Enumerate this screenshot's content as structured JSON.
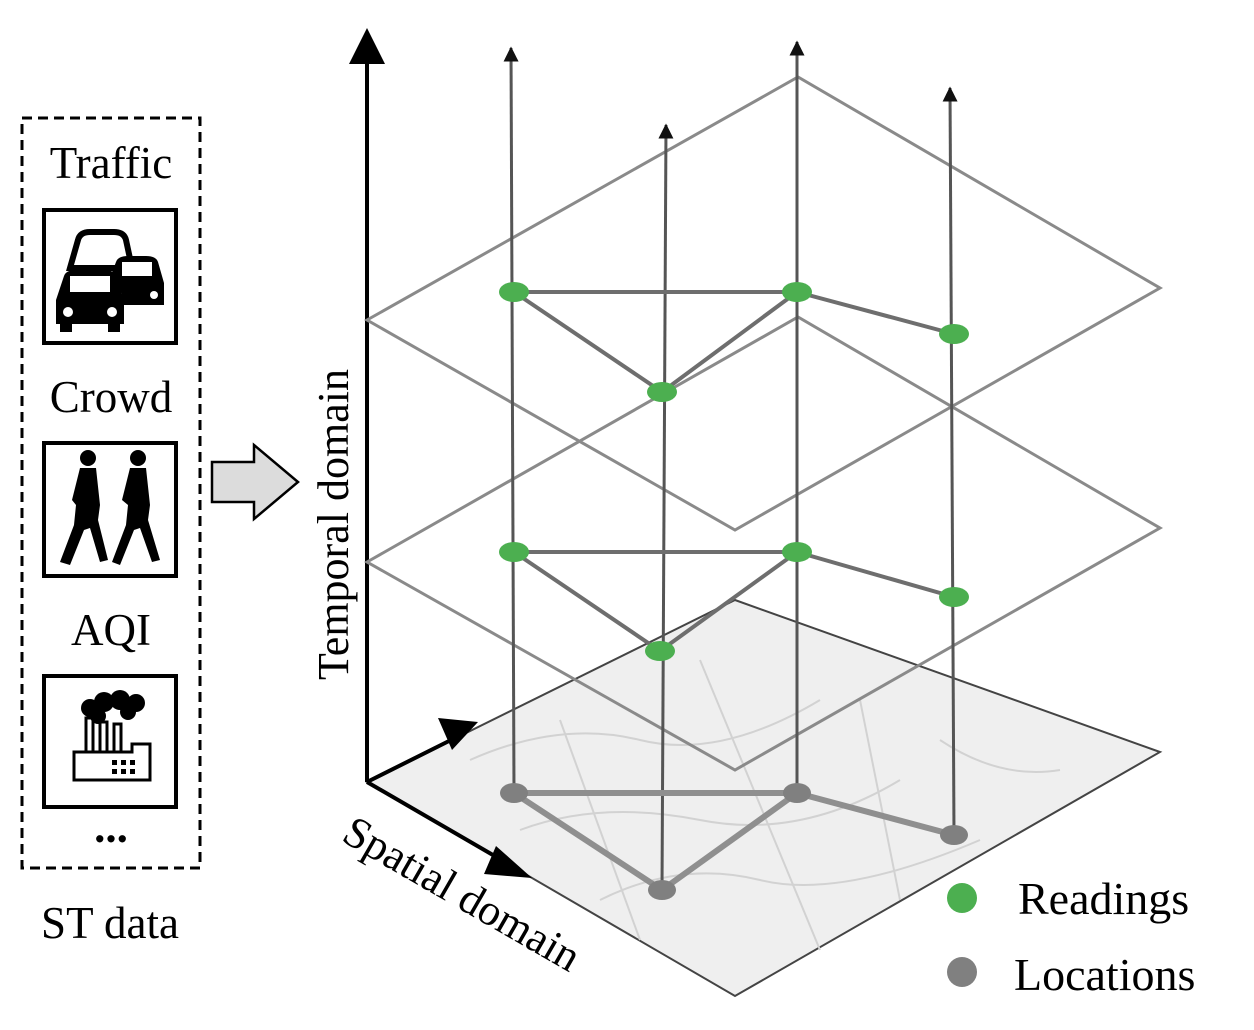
{
  "data_panel": {
    "sources": [
      {
        "label": "Traffic",
        "icon": "cars-icon"
      },
      {
        "label": "Crowd",
        "icon": "pedestrians-icon"
      },
      {
        "label": "AQI",
        "icon": "factory-smoke-icon"
      }
    ],
    "ellipsis": "...",
    "caption": "ST data"
  },
  "axes": {
    "temporal": "Temporal domain",
    "spatial": "Spatial domain"
  },
  "legend": {
    "readings": {
      "label": "Readings",
      "color": "#4caf50"
    },
    "locations": {
      "label": "Locations",
      "color": "#808080"
    }
  },
  "colors": {
    "reading_node": "#4caf50",
    "location_node": "#808080",
    "edge": "#6e6e6e",
    "plane_outline": "#8a8a8a",
    "map_fill": "#efefef"
  }
}
